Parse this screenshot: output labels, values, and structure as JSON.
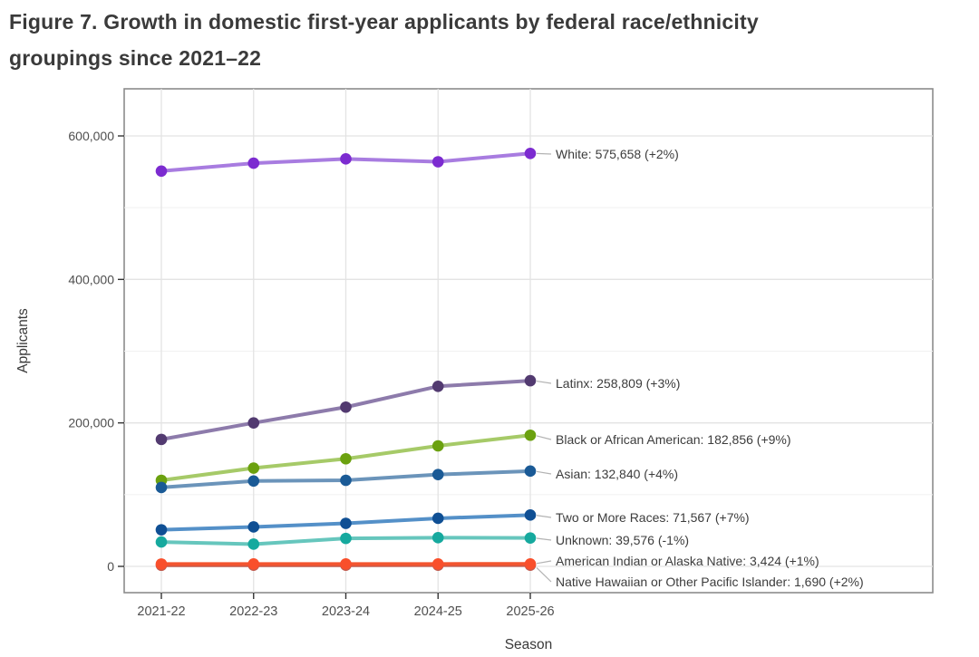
{
  "figure": {
    "title_line1": "Figure 7. Growth in domestic first-year applicants by federal race/ethnicity",
    "title_line2": "groupings since 2021–22"
  },
  "chart_data": {
    "type": "line",
    "xlabel": "Season",
    "ylabel": "Applicants",
    "categories": [
      "2021-22",
      "2022-23",
      "2023-24",
      "2024-25",
      "2025-26"
    ],
    "y_ticks": [
      {
        "value": 0,
        "label": "0"
      },
      {
        "value": 200000,
        "label": "200,000"
      },
      {
        "value": 400000,
        "label": "400,000"
      },
      {
        "value": 600000,
        "label": "600,000"
      }
    ],
    "y_minor_gridlines": [
      100000,
      300000,
      500000
    ],
    "ylim": [
      -38000,
      665000
    ],
    "grid": true,
    "legend_position": "right-annotations",
    "series": [
      {
        "name": "White",
        "label": "White: 575,658 (+2%)",
        "final_value": 575658,
        "pct_change": "+2%",
        "line_color": "#a87ce0",
        "dot_color": "#7c2bd0",
        "values": [
          551000,
          562000,
          568000,
          564000,
          575658
        ]
      },
      {
        "name": "Latinx",
        "label": "Latinx: 258,809 (+3%)",
        "final_value": 258809,
        "pct_change": "+3%",
        "line_color": "#8d7bab",
        "dot_color": "#523a70",
        "values": [
          177000,
          200000,
          222000,
          251000,
          258809
        ]
      },
      {
        "name": "Black or African American",
        "label": "Black or African American: 182,856 (+9%)",
        "final_value": 182856,
        "pct_change": "+9%",
        "line_color": "#a6ca68",
        "dot_color": "#6ba10f",
        "values": [
          120000,
          137000,
          150000,
          168000,
          182856
        ]
      },
      {
        "name": "Asian",
        "label": "Asian: 132,840 (+4%)",
        "final_value": 132840,
        "pct_change": "+4%",
        "line_color": "#6b94ba",
        "dot_color": "#1a5a96",
        "values": [
          110000,
          119000,
          120000,
          128000,
          132840
        ]
      },
      {
        "name": "Two or More Races",
        "label": "Two or More Races: 71,567 (+7%)",
        "final_value": 71567,
        "pct_change": "+7%",
        "line_color": "#5490c8",
        "dot_color": "#0f4f94",
        "values": [
          51000,
          55000,
          60000,
          67000,
          71567
        ]
      },
      {
        "name": "Unknown",
        "label": "Unknown: 39,576 (-1%)",
        "final_value": 39576,
        "pct_change": "-1%",
        "line_color": "#66c6bd",
        "dot_color": "#16a99e",
        "values": [
          34000,
          31000,
          39000,
          40000,
          39576
        ]
      },
      {
        "name": "Native Hawaiian or Other Pacific Islander",
        "label": "Native Hawaiian or Other Pacific Islander: 1,690 (+2%)",
        "final_value": 1690,
        "pct_change": "+2%",
        "line_color": "#c05a4e",
        "dot_color": "#c05a4e",
        "values": [
          1600,
          1620,
          1650,
          1660,
          1690
        ]
      },
      {
        "name": "American Indian or Alaska Native",
        "label": "American Indian or Alaska Native: 3,424 (+1%)",
        "final_value": 3424,
        "pct_change": "+1%",
        "line_color": "#f3552f",
        "dot_color": "#f94f2b",
        "values": [
          3300,
          3350,
          3380,
          3390,
          3424
        ]
      }
    ]
  }
}
